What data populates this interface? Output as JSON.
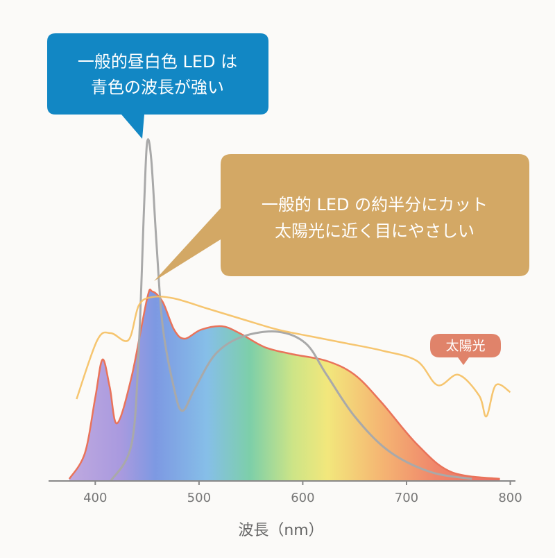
{
  "chart_data": {
    "type": "line",
    "x_label": "波長（nm）",
    "xlim": [
      355,
      805
    ],
    "xticks": [
      400,
      500,
      600,
      700,
      800
    ],
    "ylim": [
      0,
      100
    ],
    "series": [
      {
        "name": "spectrum",
        "color": "#e9735a",
        "x": [
          375,
          390,
          400,
          407,
          414,
          421,
          435,
          450,
          455,
          465,
          476,
          486,
          502,
          522,
          539,
          563,
          589,
          623,
          650,
          676,
          710,
          743,
          790
        ],
        "values": [
          0.6,
          8,
          24,
          35,
          27,
          16.6,
          30,
          52.6,
          54.6,
          51.6,
          43.6,
          41,
          43.6,
          44.6,
          42.6,
          38.6,
          36.6,
          34.6,
          30.6,
          22.6,
          10.6,
          2.6,
          0.6
        ]
      },
      {
        "name": "一般的昼白色LED",
        "color": "#a9a9a9",
        "x": [
          415,
          435,
          442,
          447,
          450,
          454,
          459,
          465,
          476,
          484,
          496,
          516,
          542,
          576,
          603,
          623,
          650,
          683,
          723,
          763
        ],
        "values": [
          0,
          10.6,
          38.6,
          78.6,
          97.6,
          92.6,
          68.6,
          44.6,
          26.6,
          20.2,
          26.6,
          36.6,
          41.6,
          43,
          39.6,
          30.6,
          18.6,
          8.6,
          2.6,
          0.6
        ]
      },
      {
        "name": "太陽光",
        "color": "#f5bf5f",
        "x": [
          382,
          402,
          415,
          432,
          442,
          455,
          476,
          509,
          542,
          576,
          609,
          643,
          676,
          710,
          730,
          750,
          770,
          777,
          786,
          800
        ],
        "values": [
          23.6,
          40.6,
          42.6,
          40.6,
          50.6,
          53,
          52.6,
          49.6,
          46.6,
          43.6,
          41.6,
          39.6,
          37.6,
          34.6,
          27.6,
          30.6,
          24.6,
          18.6,
          27.6,
          25.6
        ]
      }
    ],
    "annotations": [
      {
        "lines": [
          "一般的昼白色 LED は",
          "青色の波長が強い"
        ]
      },
      {
        "lines": [
          "一般的 LED の約半分にカット",
          "太陽光に近く目にやさしい"
        ]
      }
    ]
  }
}
